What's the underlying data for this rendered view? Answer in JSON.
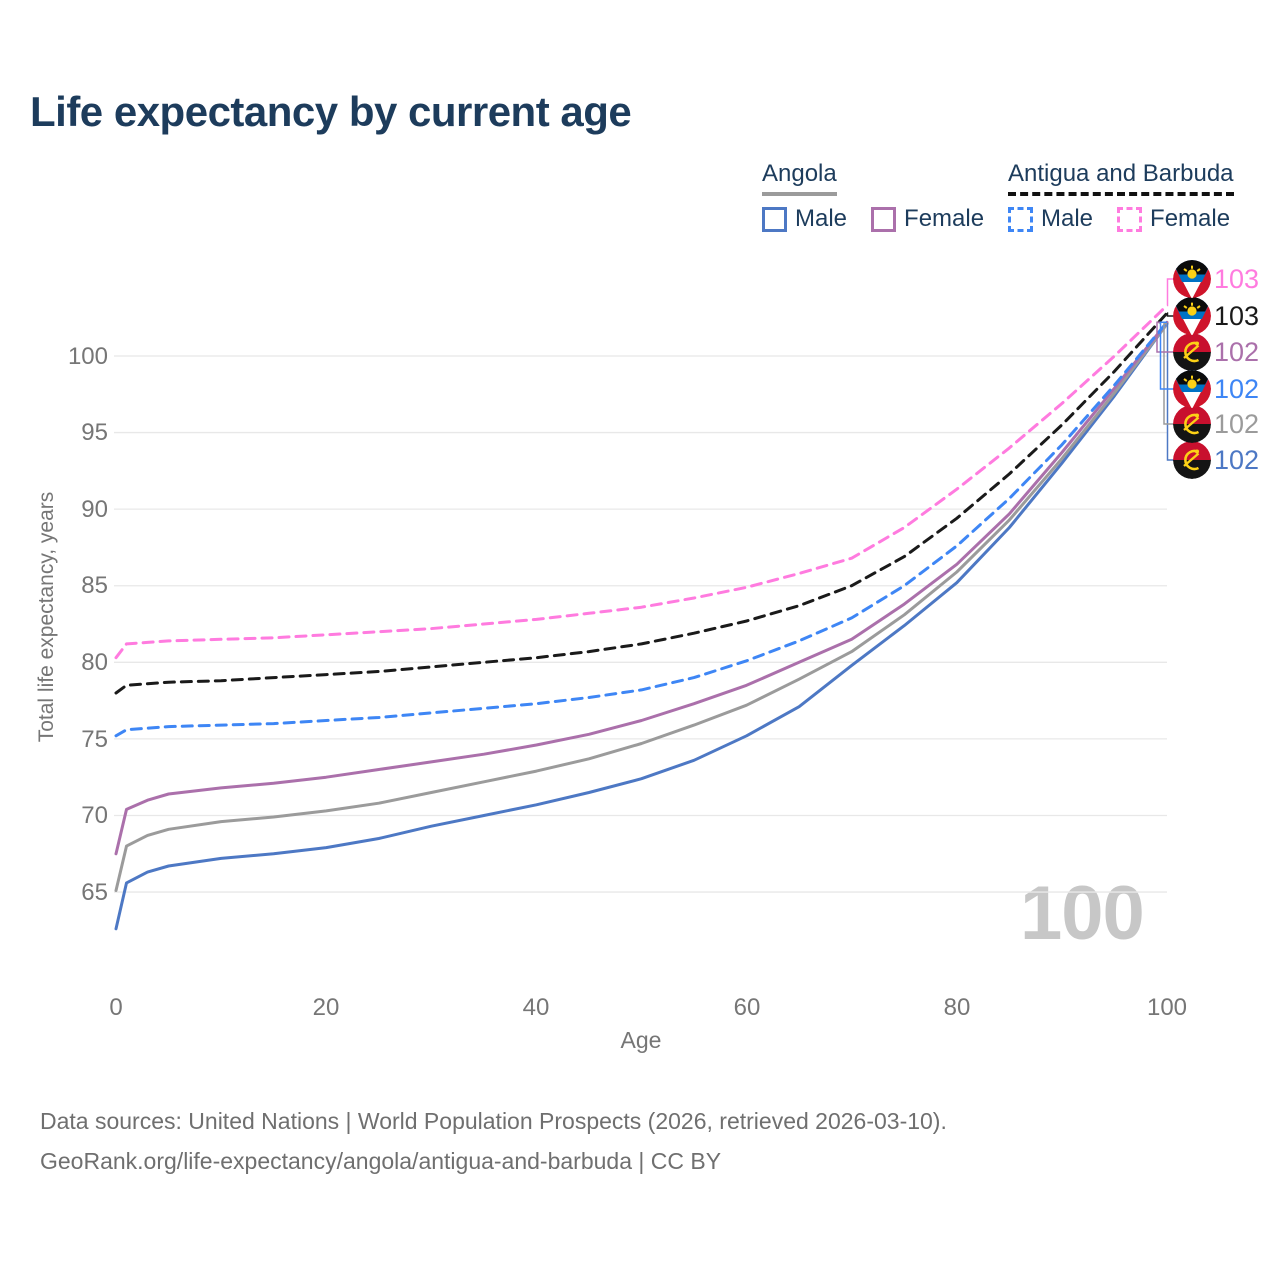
{
  "watermark": "100",
  "legend": {
    "angola": {
      "label": "Angola",
      "male_label": "Male",
      "female_label": "Female"
    },
    "antigua_and_barbuda": {
      "label": "Antigua and Barbuda",
      "male_label": "Male",
      "female_label": "Female"
    }
  },
  "footer": {
    "line1": "Data sources: United Nations | World Population Prospects (2026, retrieved 2026-03-10).",
    "line2": "GeoRank.org/life-expectancy/angola/antigua-and-barbuda | CC BY"
  },
  "colors": {
    "title_text": "#1d3c5c",
    "axis_text": "#767676",
    "gridline": "#e8e8e8",
    "watermark_text": "#c7c7c7",
    "angola_underline": "#9b9b9b",
    "antigua_underline": "#111111",
    "angola_male": "#4d78c4",
    "angola_total": "#9b9b9b",
    "angola_female": "#ab70ab",
    "antigua_male": "#3e86f5",
    "antigua_total": "#1a1a1a",
    "antigua_female": "#ff7bdf"
  },
  "chart_data": {
    "type": "line",
    "title": "Life expectancy by current age",
    "xlabel": "Age",
    "ylabel": "Total life expectancy, years",
    "xlim": [
      0,
      100
    ],
    "ylim": [
      61,
      104
    ],
    "x_ticks": [
      0,
      20,
      40,
      60,
      80,
      100
    ],
    "y_ticks": [
      65,
      70,
      75,
      80,
      85,
      90,
      95,
      100
    ],
    "grid": "horizontal-only",
    "legend_position": "top-right",
    "x": [
      0,
      1,
      3,
      5,
      10,
      15,
      20,
      25,
      30,
      35,
      40,
      45,
      50,
      55,
      60,
      65,
      70,
      75,
      80,
      85,
      90,
      95,
      100
    ],
    "series": [
      {
        "name": "Angola Male",
        "country": "Angola",
        "flag": "angola",
        "sex": "Male",
        "color": "#4d78c4",
        "line_style": "solid",
        "end_label": "102",
        "end_rank": 5,
        "values": [
          62.6,
          65.6,
          66.3,
          66.7,
          67.2,
          67.5,
          67.9,
          68.5,
          69.3,
          70.0,
          70.7,
          71.5,
          72.4,
          73.6,
          75.2,
          77.1,
          79.8,
          82.4,
          85.2,
          88.8,
          93.0,
          97.4,
          102.1
        ]
      },
      {
        "name": "Angola Total",
        "country": "Angola",
        "flag": "angola",
        "sex": "Total",
        "color": "#9b9b9b",
        "line_style": "solid",
        "end_label": "102",
        "end_rank": 4,
        "values": [
          65.1,
          68.0,
          68.7,
          69.1,
          69.6,
          69.9,
          70.3,
          70.8,
          71.5,
          72.2,
          72.9,
          73.7,
          74.7,
          75.9,
          77.2,
          78.9,
          80.7,
          83.1,
          85.9,
          89.3,
          93.3,
          97.6,
          102.1
        ]
      },
      {
        "name": "Angola Female",
        "country": "Angola",
        "flag": "angola",
        "sex": "Female",
        "color": "#ab70ab",
        "line_style": "solid",
        "end_label": "102",
        "end_rank": 2,
        "values": [
          67.5,
          70.4,
          71.0,
          71.4,
          71.8,
          72.1,
          72.5,
          73.0,
          73.5,
          74.0,
          74.6,
          75.3,
          76.2,
          77.3,
          78.5,
          80.0,
          81.5,
          83.8,
          86.4,
          89.7,
          93.7,
          97.9,
          102.2
        ]
      },
      {
        "name": "Antigua and Barbuda Male",
        "country": "Antigua and Barbuda",
        "flag": "antigua-and-barbuda",
        "sex": "Male",
        "color": "#3e86f5",
        "line_style": "dashed",
        "end_label": "102",
        "end_rank": 3,
        "values": [
          75.2,
          75.6,
          75.7,
          75.8,
          75.9,
          76.0,
          76.2,
          76.4,
          76.7,
          77.0,
          77.3,
          77.7,
          78.2,
          79.0,
          80.1,
          81.4,
          82.9,
          85.0,
          87.6,
          90.7,
          94.2,
          98.1,
          102.2
        ]
      },
      {
        "name": "Antigua and Barbuda Total",
        "country": "Antigua and Barbuda",
        "flag": "antigua-and-barbuda",
        "sex": "Total",
        "color": "#1a1a1a",
        "line_style": "dashed",
        "end_label": "103",
        "end_rank": 1,
        "values": [
          78.0,
          78.5,
          78.6,
          78.7,
          78.8,
          79.0,
          79.2,
          79.4,
          79.7,
          80.0,
          80.3,
          80.7,
          81.2,
          81.9,
          82.7,
          83.7,
          85.0,
          86.9,
          89.4,
          92.3,
          95.5,
          99.0,
          102.8
        ]
      },
      {
        "name": "Antigua and Barbuda Female",
        "country": "Antigua and Barbuda",
        "flag": "antigua-and-barbuda",
        "sex": "Female",
        "color": "#ff7bdf",
        "line_style": "dashed",
        "end_label": "103",
        "end_rank": 0,
        "values": [
          80.3,
          81.2,
          81.3,
          81.4,
          81.5,
          81.6,
          81.8,
          82.0,
          82.2,
          82.5,
          82.8,
          83.2,
          83.6,
          84.2,
          84.9,
          85.8,
          86.8,
          88.8,
          91.3,
          94.0,
          96.9,
          100.0,
          103.3
        ]
      }
    ]
  }
}
